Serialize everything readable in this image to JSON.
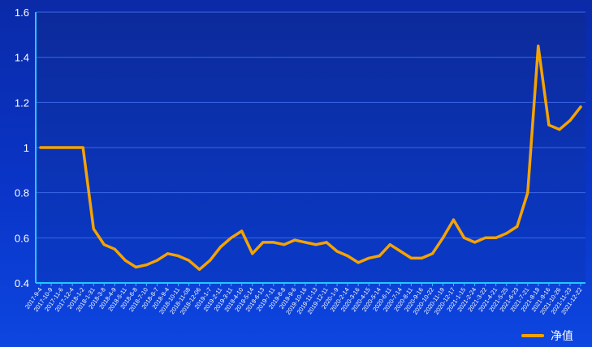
{
  "chart_data": {
    "type": "line",
    "title": "",
    "xlabel": "",
    "ylabel": "",
    "ylim": [
      0.4,
      1.6
    ],
    "yticks": [
      "0.4",
      "0.6",
      "0.8",
      "1",
      "1.2",
      "1.4",
      "1.6"
    ],
    "grid": true,
    "legend_position": "bottom-right",
    "x": [
      "2017-9-4",
      "2017-10-9",
      "2017-11-6",
      "2017-12-4",
      "2018-1-2",
      "2018-1-31",
      "2018-3-8",
      "2018-4-9",
      "2018-5-11",
      "2018-6-8",
      "2018-7-10",
      "2018-8-7",
      "2018-9-4",
      "2018-10-11",
      "2018-11-08",
      "2018-12-06",
      "2019-1-7",
      "2019-2-11",
      "2019-3-11",
      "2019-4-10",
      "2019-5-14",
      "2019-6-13",
      "2019-7-11",
      "2019-8-8",
      "2019-9-6",
      "2019-10-16",
      "2019-11-13",
      "2019-12-11",
      "2020-1-9",
      "2020-2-14",
      "2020-3-16",
      "2020-4-15",
      "2020-5-14",
      "2020-6-11",
      "2020-7-14",
      "2020-8-11",
      "2020-9-16",
      "2020-10-22",
      "2020-11-19",
      "2020-12-17",
      "2021-1-15",
      "2021-2-24",
      "2021-3-22",
      "2021-4-21",
      "2021-5-25",
      "2021-6-23",
      "2021-7-21",
      "2021-8-18",
      "2021-9-16",
      "2021-10-26",
      "2021-11-23",
      "2021-12-22"
    ],
    "series": [
      {
        "name": "净值",
        "color": "#f5a300",
        "values": [
          1.0,
          1.0,
          1.0,
          1.0,
          1.0,
          0.64,
          0.57,
          0.55,
          0.5,
          0.47,
          0.48,
          0.5,
          0.53,
          0.52,
          0.5,
          0.46,
          0.5,
          0.56,
          0.6,
          0.63,
          0.53,
          0.58,
          0.58,
          0.57,
          0.59,
          0.58,
          0.57,
          0.58,
          0.54,
          0.52,
          0.49,
          0.51,
          0.52,
          0.57,
          0.54,
          0.51,
          0.51,
          0.53,
          0.6,
          0.68,
          0.6,
          0.58,
          0.6,
          0.6,
          0.62,
          0.65,
          0.8,
          1.45,
          1.1,
          1.08,
          1.12,
          1.18
        ]
      }
    ],
    "legend": [
      "净值"
    ]
  }
}
